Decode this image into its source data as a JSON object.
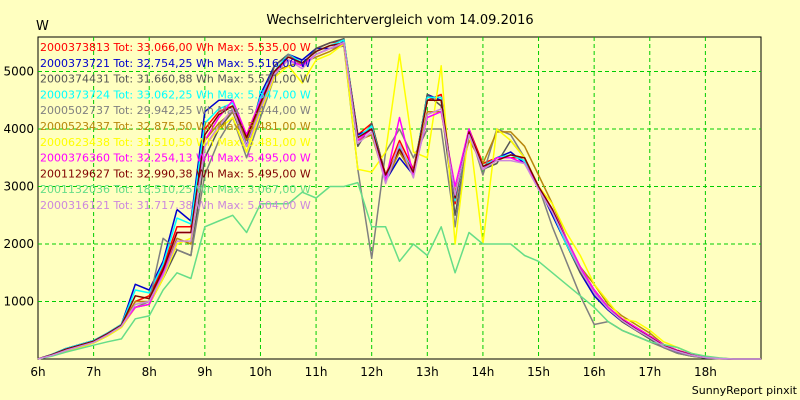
{
  "chart_data": {
    "type": "line",
    "title": "Wechselrichtervergleich vom 14.09.2016",
    "ylabel": "W",
    "footer": "SunnyReport pinxit",
    "ylim": [
      0,
      5600
    ],
    "xlim": [
      6,
      19
    ],
    "yticks": [
      1000,
      2000,
      3000,
      4000,
      5000
    ],
    "xticks": [
      6,
      7,
      8,
      9,
      10,
      11,
      12,
      13,
      14,
      15,
      16,
      17,
      18
    ],
    "xtick_labels": [
      "6h",
      "7h",
      "8h",
      "9h",
      "10h",
      "11h",
      "12h",
      "13h",
      "14h",
      "15h",
      "16h",
      "17h",
      "18h"
    ],
    "grid": true,
    "legend_position": "top-left",
    "x": [
      6,
      6.25,
      6.5,
      6.75,
      7,
      7.25,
      7.5,
      7.75,
      8,
      8.25,
      8.5,
      8.75,
      9,
      9.25,
      9.5,
      9.75,
      10,
      10.25,
      10.5,
      10.75,
      11,
      11.25,
      11.5,
      11.75,
      12,
      12.25,
      12.5,
      12.75,
      13,
      13.25,
      13.5,
      13.75,
      14,
      14.25,
      14.5,
      14.75,
      15,
      15.25,
      15.5,
      15.75,
      16,
      16.25,
      16.5,
      16.75,
      17,
      17.25,
      17.5,
      17.75,
      18,
      18.25,
      18.5,
      18.75,
      19
    ],
    "series": [
      {
        "name": "2000373813",
        "legend": "2000373813 Tot: 33.066,00 Wh Max: 5.535,00 W",
        "color": "#FF0000",
        "values": [
          0,
          80,
          180,
          250,
          320,
          450,
          600,
          1000,
          1100,
          1600,
          2300,
          2300,
          4000,
          4300,
          4400,
          3900,
          4500,
          5000,
          5300,
          5100,
          5400,
          5500,
          5535,
          3900,
          4100,
          3200,
          3800,
          3300,
          4500,
          4600,
          2700,
          4000,
          3400,
          3500,
          3500,
          3500,
          3000,
          2600,
          2000,
          1600,
          1200,
          900,
          700,
          550,
          400,
          250,
          150,
          80,
          30,
          10,
          0,
          0,
          0
        ]
      },
      {
        "name": "2000373721",
        "legend": "2000373721 Tot: 32.754,25 Wh Max: 5.516,00 W",
        "color": "#0000CC",
        "values": [
          0,
          80,
          180,
          250,
          320,
          450,
          600,
          1300,
          1200,
          1700,
          2600,
          2400,
          4300,
          4500,
          4500,
          3700,
          4600,
          5100,
          5300,
          5200,
          5400,
          5400,
          5516,
          3900,
          4000,
          3100,
          3500,
          3200,
          4600,
          4500,
          2800,
          4000,
          3300,
          3500,
          3600,
          3400,
          3000,
          2500,
          2000,
          1500,
          1100,
          850,
          650,
          500,
          350,
          200,
          120,
          60,
          20,
          5,
          0,
          0,
          0
        ]
      },
      {
        "name": "2000374431",
        "legend": "2000374431 Tot: 31.660,88 Wh Max: 5.571,00 W",
        "color": "#555555",
        "values": [
          0,
          70,
          160,
          230,
          300,
          430,
          580,
          900,
          950,
          1400,
          1900,
          1800,
          3500,
          4000,
          4300,
          3700,
          4300,
          5100,
          5300,
          5100,
          5400,
          5500,
          5571,
          3700,
          4100,
          3200,
          3600,
          3200,
          4600,
          4400,
          2500,
          3900,
          3300,
          3400,
          3800,
          3500,
          3000,
          2600,
          2000,
          1500,
          1200,
          900,
          650,
          500,
          350,
          200,
          100,
          50,
          20,
          5,
          0,
          0,
          0
        ]
      },
      {
        "name": "2000373724",
        "legend": "2000373724 Tot: 33.062,25 Wh Max: 5.547,00 W",
        "color": "#00FFFF",
        "values": [
          0,
          80,
          180,
          250,
          320,
          450,
          600,
          1200,
          1150,
          1650,
          2450,
          2350,
          4100,
          4350,
          4450,
          3800,
          4550,
          5000,
          5300,
          5150,
          5350,
          5450,
          5547,
          3850,
          4050,
          3150,
          3700,
          3250,
          4550,
          4550,
          2750,
          3950,
          3350,
          3500,
          3550,
          3450,
          3000,
          2550,
          2000,
          1550,
          1150,
          880,
          680,
          520,
          380,
          230,
          140,
          70,
          25,
          8,
          0,
          0,
          0
        ]
      },
      {
        "name": "2000502737",
        "legend": "2000502737 Tot: 29.942,25 Wh Max: 5.444,00 W",
        "color": "#808080",
        "values": [
          0,
          60,
          140,
          200,
          280,
          400,
          550,
          900,
          1000,
          2100,
          1900,
          1800,
          3200,
          3800,
          4200,
          3500,
          4200,
          4900,
          5300,
          5100,
          5300,
          5400,
          5444,
          3300,
          1750,
          3600,
          4000,
          3500,
          4000,
          4000,
          2300,
          4000,
          3200,
          4000,
          3900,
          3500,
          3000,
          2300,
          1700,
          1100,
          600,
          650,
          500,
          400,
          300,
          200,
          100,
          50,
          20,
          5,
          0,
          0,
          0
        ]
      },
      {
        "name": "2000523437",
        "legend": "2000523437 Tot: 32.875,50 Wh Max: 5.481,00 W",
        "color": "#B8860B",
        "values": [
          0,
          70,
          160,
          230,
          300,
          430,
          580,
          1000,
          1000,
          1500,
          2100,
          2000,
          3800,
          4100,
          4300,
          3800,
          4400,
          5000,
          5100,
          5150,
          5250,
          5350,
          5481,
          3800,
          3900,
          3100,
          3600,
          3200,
          4300,
          4300,
          2900,
          3800,
          3400,
          3950,
          3950,
          3700,
          3200,
          2700,
          2100,
          1600,
          1300,
          950,
          750,
          600,
          450,
          250,
          150,
          80,
          30,
          10,
          0,
          0,
          0
        ]
      },
      {
        "name": "2000623438",
        "legend": "2000623438 Tot: 31.510,50 Wh Max: 5.481,00 W",
        "color": "#FFFF00",
        "values": [
          0,
          60,
          140,
          200,
          280,
          400,
          550,
          900,
          950,
          1400,
          2000,
          2100,
          3700,
          4000,
          4200,
          3600,
          4300,
          4900,
          5100,
          4800,
          5200,
          5300,
          5481,
          3300,
          3250,
          3600,
          5300,
          3600,
          3500,
          5100,
          2000,
          4000,
          2000,
          4000,
          3800,
          3500,
          3000,
          2700,
          2200,
          1800,
          1300,
          1000,
          700,
          650,
          500,
          300,
          200,
          100,
          40,
          10,
          0,
          0,
          0
        ]
      },
      {
        "name": "2000376360",
        "legend": "2000376360 Tot: 32.254,13 Wh Max: 5.495,00 W",
        "color": "#FF00FF",
        "values": [
          0,
          70,
          160,
          230,
          300,
          430,
          580,
          900,
          950,
          1500,
          2200,
          2200,
          3800,
          4200,
          4500,
          3900,
          4500,
          5000,
          5200,
          5100,
          5300,
          5400,
          5495,
          3800,
          4000,
          3100,
          4200,
          3200,
          4200,
          4300,
          3000,
          4000,
          3300,
          3500,
          3500,
          3400,
          3000,
          2600,
          2100,
          1600,
          1200,
          900,
          700,
          550,
          400,
          250,
          150,
          80,
          30,
          10,
          0,
          0,
          0
        ]
      },
      {
        "name": "2001129627",
        "legend": "2001129627 Tot: 32.990,38 Wh Max: 5.495,00 W",
        "color": "#800000",
        "values": [
          0,
          75,
          170,
          240,
          310,
          440,
          590,
          1100,
          1050,
          1550,
          2200,
          2200,
          3900,
          4250,
          4400,
          3850,
          4450,
          5000,
          5250,
          5150,
          5350,
          5450,
          5495,
          3850,
          4000,
          3200,
          3650,
          3250,
          4500,
          4500,
          2800,
          3950,
          3350,
          3450,
          3550,
          3500,
          3000,
          2600,
          2050,
          1550,
          1150,
          870,
          680,
          520,
          380,
          230,
          140,
          70,
          25,
          8,
          0,
          0,
          0
        ]
      },
      {
        "name": "2001132036",
        "legend": "2001132036 Tot: 18.510,25 Wh Max: 3.067,00 W",
        "color": "#66DD88",
        "values": [
          0,
          50,
          120,
          180,
          240,
          300,
          350,
          700,
          750,
          1200,
          1500,
          1400,
          2300,
          2400,
          2500,
          2200,
          2700,
          2700,
          2700,
          2900,
          2800,
          3000,
          3000,
          3067,
          2300,
          2300,
          1700,
          2000,
          1800,
          2300,
          1500,
          2200,
          2000,
          2000,
          2000,
          1800,
          1700,
          1500,
          1300,
          1100,
          900,
          650,
          500,
          400,
          300,
          250,
          200,
          100,
          50,
          20,
          0,
          0,
          0
        ]
      },
      {
        "name": "2000316121",
        "legend": "2000316121 Tot: 31.717,38 Wh Max: 5.504,00 W",
        "color": "#CC88DD",
        "values": [
          0,
          65,
          150,
          220,
          290,
          420,
          570,
          950,
          1000,
          1450,
          2050,
          2050,
          3700,
          4050,
          4350,
          3700,
          4350,
          4950,
          5200,
          5050,
          5300,
          5400,
          5504,
          3750,
          3950,
          3050,
          3750,
          3150,
          4250,
          4350,
          2850,
          3900,
          3300,
          3450,
          3450,
          3400,
          2950,
          2550,
          2050,
          1550,
          1150,
          870,
          670,
          510,
          370,
          220,
          130,
          65,
          25,
          8,
          0,
          0,
          0
        ]
      }
    ]
  }
}
